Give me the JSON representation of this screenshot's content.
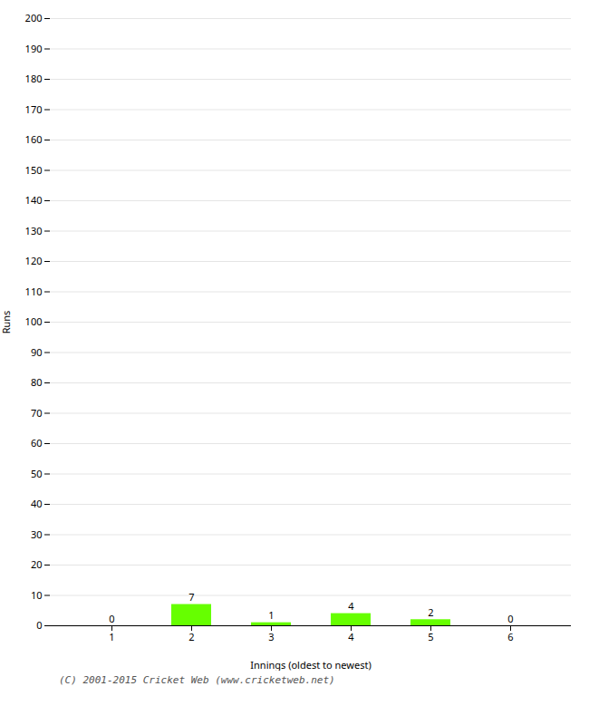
{
  "chart_data": {
    "type": "bar",
    "categories": [
      "1",
      "2",
      "3",
      "4",
      "5",
      "6"
    ],
    "values": [
      0,
      7,
      1,
      4,
      2,
      0
    ],
    "color": "#66ff00",
    "xlabel": "Innings (oldest to newest)",
    "ylabel": "Runs",
    "ylim": [
      0,
      200
    ],
    "yticks": [
      0,
      10,
      20,
      30,
      40,
      50,
      60,
      70,
      80,
      90,
      100,
      110,
      120,
      130,
      140,
      150,
      160,
      170,
      180,
      190,
      200
    ],
    "grid": true,
    "data_labels": true,
    "annotations": [
      "(C) 2001-2015 Cricket Web (www.cricketweb.net)"
    ]
  }
}
